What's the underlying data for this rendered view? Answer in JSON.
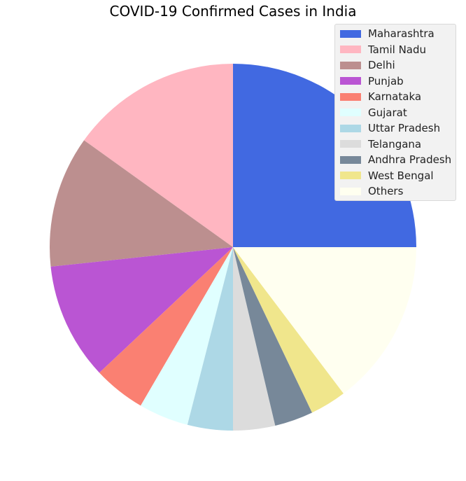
{
  "chart_data": {
    "type": "pie",
    "title": "COVID-19 Confirmed Cases in India",
    "start_angle": 0,
    "direction": "counterclockwise",
    "legend_position": "top-right",
    "slices": [
      {
        "label": "Maharashtra",
        "value": 25.0,
        "color": "#4169e1"
      },
      {
        "label": "Tamil Nadu",
        "value": 15.1,
        "color": "#ffb6c1"
      },
      {
        "label": "Delhi",
        "value": 11.6,
        "color": "#bc8f8f"
      },
      {
        "label": "Punjab",
        "value": 10.3,
        "color": "#ba55d3"
      },
      {
        "label": "Karnataka",
        "value": 4.6,
        "color": "#fa8072"
      },
      {
        "label": "Gujarat",
        "value": 4.4,
        "color": "#e0ffff"
      },
      {
        "label": "Uttar Pradesh",
        "value": 4.0,
        "color": "#add8e6"
      },
      {
        "label": "Telangana",
        "value": 3.7,
        "color": "#dcdcdc"
      },
      {
        "label": "Andhra Pradesh",
        "value": 3.4,
        "color": "#778899"
      },
      {
        "label": "West Bengal",
        "value": 3.2,
        "color": "#f0e68c"
      },
      {
        "label": "Others",
        "value": 14.7,
        "color": "#fffff0"
      }
    ]
  }
}
